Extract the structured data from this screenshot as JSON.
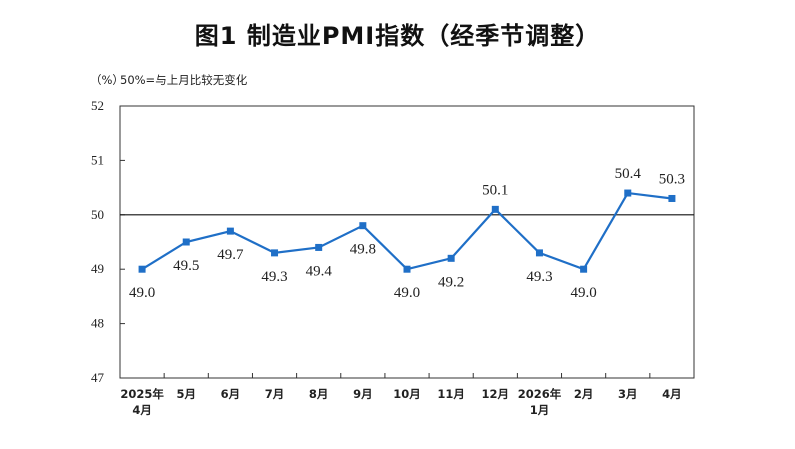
{
  "title": "图1  制造业PMI指数（经季节调整）",
  "unit_label": "（%）",
  "note": "50%=与上月比较无变化",
  "chart_data": {
    "type": "line",
    "title": "图1  制造业PMI指数（经季节调整）",
    "ylabel": "（%）",
    "xlabel": "",
    "ylim": [
      47,
      52
    ],
    "yticks": [
      47,
      48,
      49,
      50,
      51,
      52
    ],
    "reference_line": 50,
    "grid": false,
    "line_color": "#1f6fc7",
    "categories": [
      [
        "2025年",
        "4月"
      ],
      [
        "5月"
      ],
      [
        "6月"
      ],
      [
        "7月"
      ],
      [
        "8月"
      ],
      [
        "9月"
      ],
      [
        "10月"
      ],
      [
        "11月"
      ],
      [
        "12月"
      ],
      [
        "2026年",
        "1月"
      ],
      [
        "2月"
      ],
      [
        "3月"
      ],
      [
        "4月"
      ]
    ],
    "values": [
      49.0,
      49.5,
      49.7,
      49.3,
      49.4,
      49.8,
      49.0,
      49.2,
      50.1,
      49.3,
      49.0,
      50.4,
      50.3
    ],
    "data_labels": [
      "49.0",
      "49.5",
      "49.7",
      "49.3",
      "49.4",
      "49.8",
      "49.0",
      "49.2",
      "50.1",
      "49.3",
      "49.0",
      "50.4",
      "50.3"
    ],
    "label_positions": [
      "below",
      "below",
      "below",
      "below",
      "below",
      "below",
      "below",
      "below",
      "above",
      "below",
      "below",
      "above",
      "above"
    ]
  }
}
